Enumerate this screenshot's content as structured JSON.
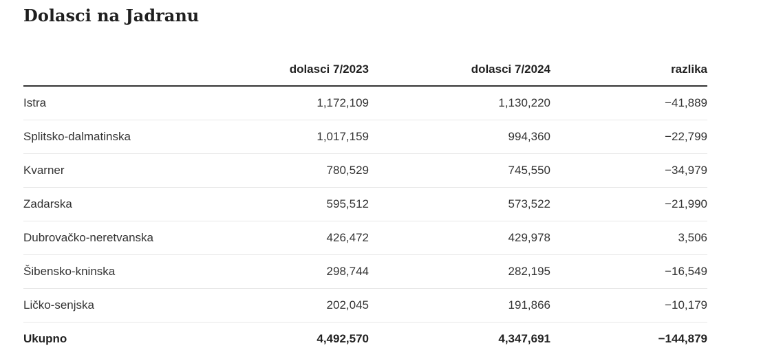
{
  "title": "Dolasci na Jadranu",
  "table": {
    "headers": [
      "",
      "dolasci 7/2023",
      "dolasci 7/2024",
      "razlika"
    ],
    "rows": [
      {
        "region": "Istra",
        "y2023": "1,172,109",
        "y2024": "1,130,220",
        "diff": "−41,889"
      },
      {
        "region": "Splitsko-dalmatinska",
        "y2023": "1,017,159",
        "y2024": "994,360",
        "diff": "−22,799"
      },
      {
        "region": "Kvarner",
        "y2023": "780,529",
        "y2024": "745,550",
        "diff": "−34,979"
      },
      {
        "region": "Zadarska",
        "y2023": "595,512",
        "y2024": "573,522",
        "diff": "−21,990"
      },
      {
        "region": "Dubrovačko-neretvanska",
        "y2023": "426,472",
        "y2024": "429,978",
        "diff": "3,506"
      },
      {
        "region": "Šibensko-kninska",
        "y2023": "298,744",
        "y2024": "282,195",
        "diff": "−16,549"
      },
      {
        "region": "Ličko-senjska",
        "y2023": "202,045",
        "y2024": "191,866",
        "diff": "−10,179"
      }
    ],
    "total": {
      "region": "Ukupno",
      "y2023": "4,492,570",
      "y2024": "4,347,691",
      "diff": "−144,879"
    }
  }
}
